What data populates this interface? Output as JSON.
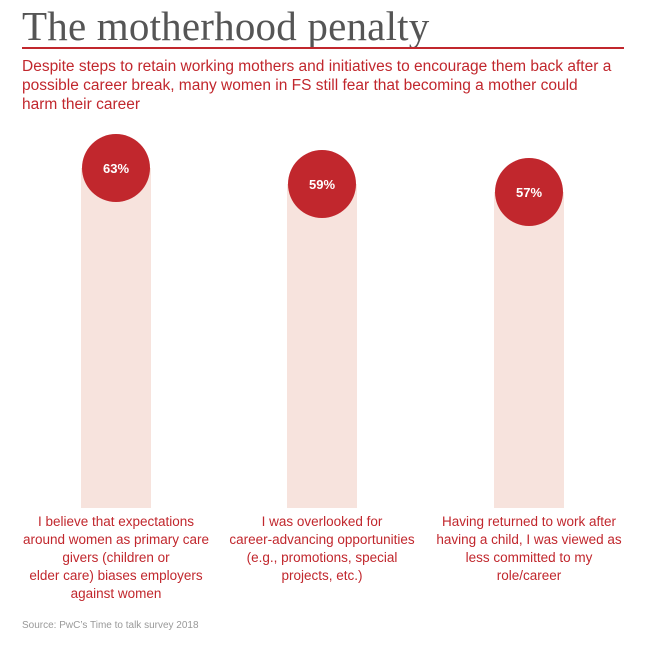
{
  "title": "The motherhood penalty",
  "subtitle": "Despite steps to retain working mothers and initiatives to encourage them back after a possible career break, many women in FS still fear that becoming a mother could harm their career",
  "source": "Source: PwC’s Time to talk survey 2018",
  "colors": {
    "accent": "#c1272d",
    "track": "#f7e3dd",
    "title": "#555555",
    "source": "#999999"
  },
  "chart_data": {
    "type": "bar",
    "categories": [
      "I believe that expectations\naround women as primary care\ngivers (children or\nelder care) biases employers\nagainst women",
      "I was overlooked for\ncareer-advancing opportunities\n(e.g., promotions, special\nprojects, etc.)",
      "Having returned to work after\nhaving a child, I was viewed as\nless committed to my\nrole/career"
    ],
    "values": [
      63,
      59,
      57
    ],
    "value_labels": [
      "63%",
      "59%",
      "57%"
    ],
    "ylim": [
      0,
      100
    ],
    "unit": "%"
  }
}
